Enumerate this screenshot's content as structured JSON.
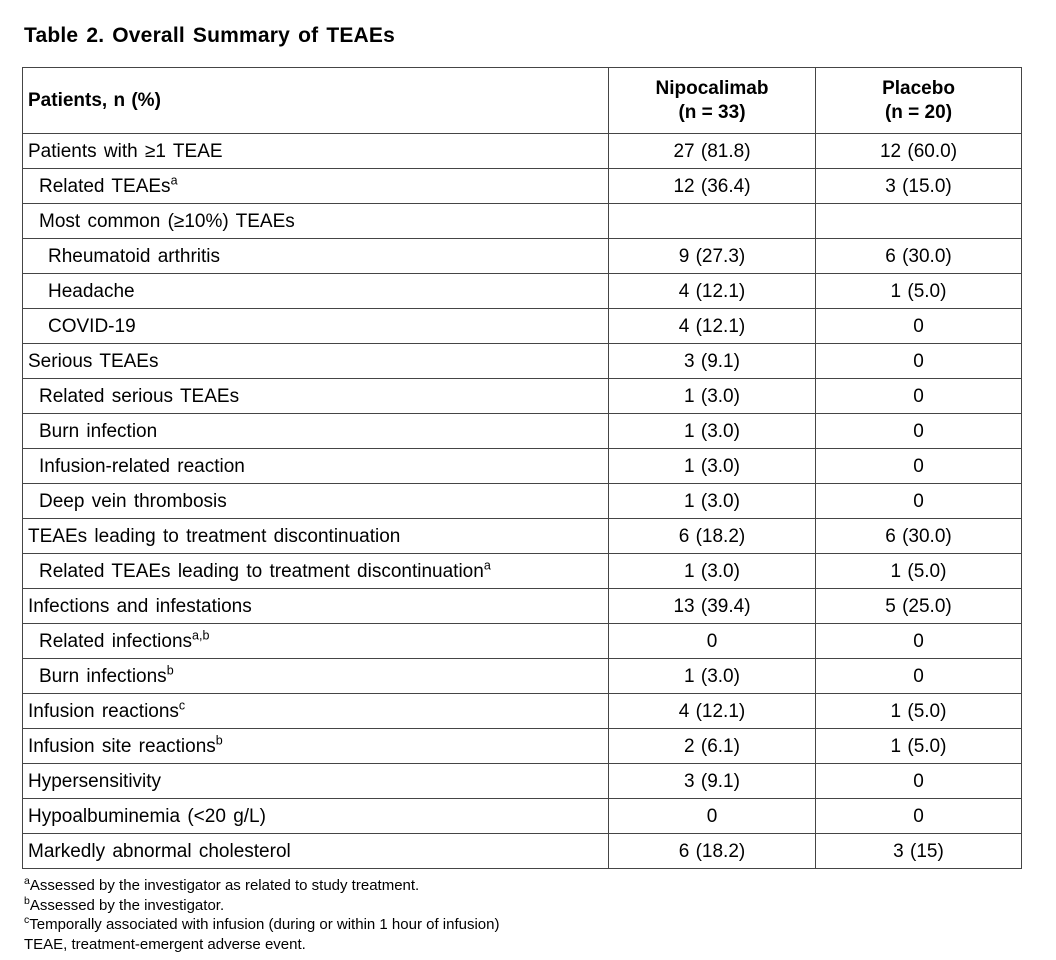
{
  "title": "Table 2. Overall Summary of TEAEs",
  "table": {
    "header": {
      "col0": "Patients, n (%)",
      "col1": {
        "line1": "Nipocalimab",
        "line2": "(n = 33)"
      },
      "col2": {
        "line1": "Placebo",
        "line2": "(n = 20)"
      }
    },
    "rows": [
      {
        "label": "Patients with ≥1 TEAE",
        "sup": "",
        "indent": 0,
        "nipocalimab": "27 (81.8)",
        "placebo": "12 (60.0)"
      },
      {
        "label": "Related TEAEs",
        "sup": "a",
        "indent": 1,
        "nipocalimab": "12 (36.4)",
        "placebo": "3 (15.0)"
      },
      {
        "label": "Most common (≥10%) TEAEs",
        "sup": "",
        "indent": 1,
        "nipocalimab": "",
        "placebo": ""
      },
      {
        "label": "Rheumatoid arthritis",
        "sup": "",
        "indent": 2,
        "nipocalimab": "9 (27.3)",
        "placebo": "6 (30.0)"
      },
      {
        "label": "Headache",
        "sup": "",
        "indent": 2,
        "nipocalimab": "4 (12.1)",
        "placebo": "1 (5.0)"
      },
      {
        "label": "COVID-19",
        "sup": "",
        "indent": 2,
        "nipocalimab": "4 (12.1)",
        "placebo": "0"
      },
      {
        "label": "Serious TEAEs",
        "sup": "",
        "indent": 0,
        "nipocalimab": "3 (9.1)",
        "placebo": "0"
      },
      {
        "label": "Related serious TEAEs",
        "sup": "",
        "indent": 1,
        "nipocalimab": "1 (3.0)",
        "placebo": "0"
      },
      {
        "label": "Burn infection",
        "sup": "",
        "indent": 1,
        "nipocalimab": "1 (3.0)",
        "placebo": "0"
      },
      {
        "label": "Infusion-related reaction",
        "sup": "",
        "indent": 1,
        "nipocalimab": "1 (3.0)",
        "placebo": "0"
      },
      {
        "label": "Deep vein thrombosis",
        "sup": "",
        "indent": 1,
        "nipocalimab": "1 (3.0)",
        "placebo": "0"
      },
      {
        "label": "TEAEs leading to treatment discontinuation",
        "sup": "",
        "indent": 0,
        "nipocalimab": "6 (18.2)",
        "placebo": "6 (30.0)"
      },
      {
        "label": "Related TEAEs leading to treatment discontinuation",
        "sup": "a",
        "indent": 1,
        "nipocalimab": "1 (3.0)",
        "placebo": "1 (5.0)"
      },
      {
        "label": "Infections and infestations",
        "sup": "",
        "indent": 0,
        "nipocalimab": "13 (39.4)",
        "placebo": "5 (25.0)"
      },
      {
        "label": "Related infections",
        "sup": "a,b",
        "indent": 1,
        "nipocalimab": "0",
        "placebo": "0"
      },
      {
        "label": "Burn infections",
        "sup": "b",
        "indent": 1,
        "nipocalimab": "1 (3.0)",
        "placebo": "0"
      },
      {
        "label": "Infusion reactions",
        "sup": "c",
        "indent": 0,
        "nipocalimab": "4 (12.1)",
        "placebo": "1 (5.0)"
      },
      {
        "label": "Infusion site reactions",
        "sup": "b",
        "indent": 0,
        "nipocalimab": "2 (6.1)",
        "placebo": "1 (5.0)"
      },
      {
        "label": "Hypersensitivity",
        "sup": "",
        "indent": 0,
        "nipocalimab": "3 (9.1)",
        "placebo": "0"
      },
      {
        "label": "Hypoalbuminemia (<20 g/L)",
        "sup": "",
        "indent": 0,
        "nipocalimab": "0",
        "placebo": "0"
      },
      {
        "label": "Markedly abnormal cholesterol",
        "sup": "",
        "indent": 0,
        "nipocalimab": "6 (18.2)",
        "placebo": "3 (15)"
      }
    ]
  },
  "footnotes": [
    {
      "sup": "a",
      "text": "Assessed by the investigator as related to study treatment."
    },
    {
      "sup": "b",
      "text": "Assessed by the investigator."
    },
    {
      "sup": "c",
      "text": "Temporally associated with infusion (during or within 1 hour of infusion)"
    },
    {
      "sup": "",
      "text": "TEAE, treatment-emergent adverse event."
    }
  ]
}
